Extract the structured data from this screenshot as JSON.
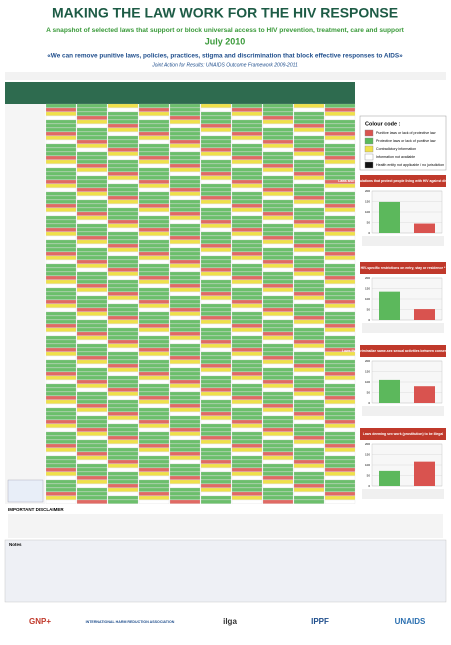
{
  "header": {
    "title": "MAKING THE LAW WORK FOR THE HIV RESPONSE",
    "subtitle": "A snapshot of selected laws that support or block universal access to HIV prevention, treatment, care and support",
    "date": "July 2010",
    "quote": "«We can remove punitive laws, policies, practices, stigma and discrimination that block effective responses to AIDS»",
    "attribution": "Joint Action for Results: UNAIDS Outcome Framework 2009-2011"
  },
  "legend": {
    "title": "Colour code :",
    "items": [
      {
        "label": "Punitive laws or lack of protective law",
        "color": "#d9534f"
      },
      {
        "label": "Protective laws or lack of punitive law",
        "color": "#5cb85c"
      },
      {
        "label": "Contradictory information",
        "color": "#f0e04a"
      },
      {
        "label": "Information not available",
        "color": "#ffffff"
      },
      {
        "label": "Health entity not applicable / no jurisdiction",
        "color": "#111111"
      }
    ]
  },
  "charts": [
    {
      "type": "bar",
      "title": "Laws and regulations that protect people living with HIV against discrimination *",
      "values": [
        148,
        45
      ],
      "colors": [
        "#5cb85c",
        "#d9534f"
      ],
      "ylim": [
        0,
        200
      ],
      "yticks": [
        0,
        50,
        100,
        150,
        200
      ]
    },
    {
      "type": "bar",
      "title": "HIV-specific restrictions on entry, stay or residence *",
      "values": [
        135,
        52
      ],
      "colors": [
        "#5cb85c",
        "#d9534f"
      ],
      "ylim": [
        0,
        200
      ],
      "yticks": [
        0,
        50,
        100,
        150,
        200
      ]
    },
    {
      "type": "bar",
      "title": "Laws that criminalize same-sex sexual activities between consenting adults",
      "values": [
        110,
        80
      ],
      "colors": [
        "#5cb85c",
        "#d9534f"
      ],
      "ylim": [
        0,
        200
      ],
      "yticks": [
        0,
        50,
        100,
        150,
        200
      ]
    },
    {
      "type": "bar",
      "title": "Laws deeming sex work (prostitution) to be illegal",
      "values": [
        72,
        116
      ],
      "colors": [
        "#5cb85c",
        "#d9534f"
      ],
      "ylim": [
        0,
        200
      ],
      "yticks": [
        0,
        50,
        100,
        150,
        200
      ]
    }
  ],
  "disclaimer": {
    "title": "IMPORTANT DISCLAIMER"
  },
  "notes": {
    "title": "Notes"
  },
  "logos": [
    "GNP+",
    "INTERNATIONAL HARM REDUCTION ASSOCIATION",
    "ilga",
    "IPPF",
    "UNAIDS"
  ]
}
